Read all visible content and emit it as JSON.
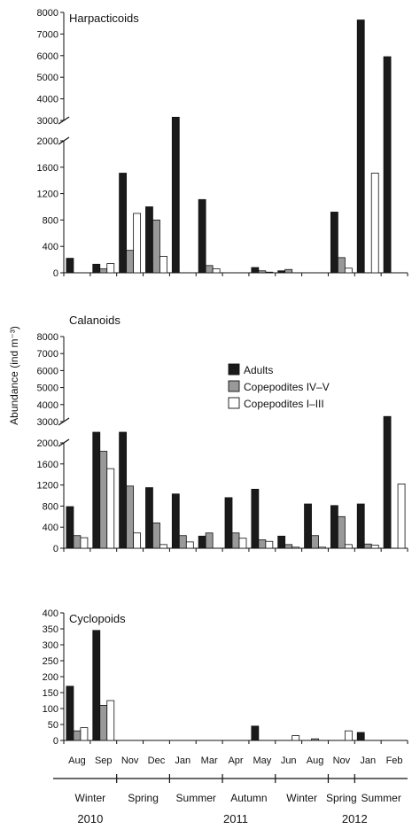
{
  "chart_data": {
    "type": "bar",
    "ylabel": "Abundance (ind m⁻³)",
    "categories": [
      "Aug",
      "Sep",
      "Nov",
      "Dec",
      "Jan",
      "Mar",
      "Apr",
      "May",
      "Jun",
      "Aug",
      "Nov",
      "Jan",
      "Feb"
    ],
    "seasons": [
      {
        "label": "Winter",
        "from": 0,
        "to": 1
      },
      {
        "label": "Spring",
        "from": 2,
        "to": 3
      },
      {
        "label": "Summer",
        "from": 4,
        "to": 5
      },
      {
        "label": "Autumn",
        "from": 6,
        "to": 7
      },
      {
        "label": "Winter",
        "from": 8,
        "to": 9
      },
      {
        "label": "Spring",
        "from": 10,
        "to": 10
      },
      {
        "label": "Summer",
        "from": 11,
        "to": 12
      }
    ],
    "years": [
      {
        "label": "2010",
        "center": 0.5
      },
      {
        "label": "2011",
        "center": 6.0
      },
      {
        "label": "2012",
        "center": 10.5
      }
    ],
    "legend": {
      "placement": "right, inside Calanoids panel",
      "entries": [
        {
          "name": "Adults",
          "color": "#1a1a1a"
        },
        {
          "name": "Copepodites IV–V",
          "color": "#999999"
        },
        {
          "name": "Copepodites I–III",
          "color": "#ffffff"
        }
      ]
    },
    "panels": [
      {
        "title": "Harpacticoids",
        "axis_break": true,
        "lower_ticks": [
          0,
          400,
          800,
          1200,
          1600,
          2000
        ],
        "upper_ticks": [
          3000,
          4000,
          5000,
          6000,
          7000,
          8000
        ],
        "series": [
          {
            "name": "Adults",
            "values": [
              220,
              130,
              1510,
              1000,
              3150,
              1110,
              0,
              80,
              30,
              0,
              920,
              7650,
              5950
            ]
          },
          {
            "name": "Copepodites IV–V",
            "values": [
              0,
              60,
              340,
              800,
              0,
              110,
              0,
              30,
              50,
              0,
              230,
              0,
              0
            ]
          },
          {
            "name": "Copepodites I–III",
            "values": [
              0,
              140,
              900,
              250,
              0,
              60,
              0,
              10,
              0,
              0,
              70,
              1510,
              0
            ]
          }
        ]
      },
      {
        "title": "Calanoids",
        "axis_break": true,
        "lower_ticks": [
          0,
          400,
          800,
          1200,
          1600,
          2000
        ],
        "upper_ticks": [
          3000,
          4000,
          5000,
          6000,
          7000,
          8000
        ],
        "series": [
          {
            "name": "Adults",
            "values": [
              790,
              2080,
              2080,
              1150,
              1030,
              230,
              960,
              1120,
              230,
              840,
              810,
              840,
              3300
            ]
          },
          {
            "name": "Copepodites IV–V",
            "values": [
              240,
              1840,
              1180,
              480,
              240,
              290,
              290,
              160,
              70,
              240,
              600,
              80,
              0
            ]
          },
          {
            "name": "Copepodites I–III",
            "values": [
              200,
              1510,
              290,
              70,
              120,
              0,
              190,
              130,
              20,
              20,
              70,
              60,
              1220
            ]
          }
        ]
      },
      {
        "title": "Cyclopoids",
        "axis_break": false,
        "ticks": [
          0,
          50,
          100,
          150,
          200,
          250,
          300,
          350,
          400
        ],
        "series": [
          {
            "name": "Adults",
            "values": [
              170,
              345,
              0,
              0,
              0,
              0,
              0,
              45,
              0,
              0,
              0,
              25,
              0
            ]
          },
          {
            "name": "Copepodites IV–V",
            "values": [
              30,
              110,
              0,
              0,
              0,
              0,
              0,
              0,
              0,
              5,
              0,
              0,
              0
            ]
          },
          {
            "name": "Copepodites I–III",
            "values": [
              40,
              125,
              0,
              0,
              0,
              0,
              0,
              0,
              15,
              0,
              30,
              0,
              0
            ]
          }
        ]
      }
    ]
  }
}
